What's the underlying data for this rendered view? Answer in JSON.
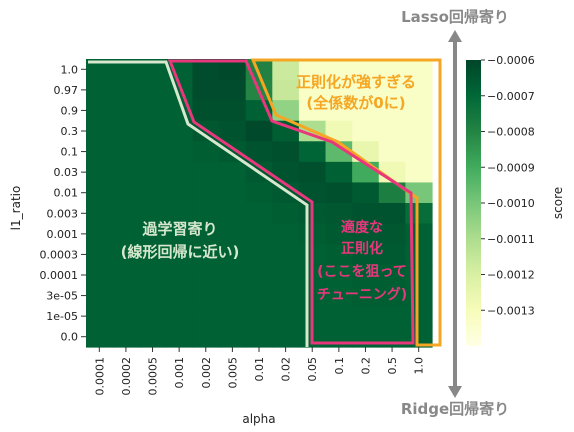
{
  "chart_data": {
    "type": "heatmap",
    "xlabel": "alpha",
    "ylabel": "l1_ratio",
    "x_categories": [
      "0.0001",
      "0.0002",
      "0.0005",
      "0.001",
      "0.002",
      "0.005",
      "0.01",
      "0.02",
      "0.05",
      "0.1",
      "0.2",
      "0.5",
      "1.0"
    ],
    "y_categories": [
      "1.0",
      "0.97",
      "0.9",
      "0.3",
      "0.1",
      "0.03",
      "0.01",
      "0.003",
      "0.001",
      "0.0003",
      "0.0001",
      "3e-05",
      "1e-05",
      "0.0"
    ],
    "values": [
      [
        -0.00068,
        -0.00068,
        -0.00068,
        -0.00068,
        -0.00062,
        -0.00061,
        -0.00079,
        -0.00117,
        -0.00133,
        -0.00133,
        -0.00133,
        -0.00133,
        -0.00133
      ],
      [
        -0.00068,
        -0.00068,
        -0.00068,
        -0.00068,
        -0.00062,
        -0.00062,
        -0.0008,
        -0.00116,
        -0.00133,
        -0.00133,
        -0.00133,
        -0.00133,
        -0.00133
      ],
      [
        -0.00068,
        -0.00068,
        -0.00068,
        -0.00068,
        -0.00063,
        -0.00063,
        -0.00068,
        -0.00105,
        -0.00133,
        -0.00133,
        -0.00133,
        -0.00133,
        -0.00133
      ],
      [
        -0.00068,
        -0.00068,
        -0.00068,
        -0.00068,
        -0.00065,
        -0.00064,
        -0.00061,
        -0.00067,
        -0.0011,
        -0.00128,
        -0.00133,
        -0.00133,
        -0.00133
      ],
      [
        -0.00068,
        -0.00068,
        -0.00068,
        -0.00068,
        -0.00067,
        -0.00066,
        -0.00064,
        -0.00063,
        -0.00069,
        -0.00095,
        -0.00125,
        -0.00133,
        -0.00133
      ],
      [
        -0.00068,
        -0.00068,
        -0.00068,
        -0.00068,
        -0.00068,
        -0.00068,
        -0.00066,
        -0.00064,
        -0.00063,
        -0.00068,
        -0.0009,
        -0.00128,
        -0.00133
      ],
      [
        -0.00068,
        -0.00068,
        -0.00068,
        -0.00068,
        -0.00068,
        -0.00068,
        -0.00067,
        -0.00066,
        -0.00064,
        -0.00063,
        -0.00066,
        -0.00078,
        -0.001
      ],
      [
        -0.00068,
        -0.00068,
        -0.00068,
        -0.00068,
        -0.00068,
        -0.00068,
        -0.00068,
        -0.00067,
        -0.00066,
        -0.00065,
        -0.00064,
        -0.00064,
        -0.00072
      ],
      [
        -0.00068,
        -0.00068,
        -0.00068,
        -0.00068,
        -0.00068,
        -0.00068,
        -0.00068,
        -0.00068,
        -0.00067,
        -0.00066,
        -0.00065,
        -0.00065,
        -0.00068
      ],
      [
        -0.00068,
        -0.00068,
        -0.00068,
        -0.00068,
        -0.00068,
        -0.00068,
        -0.00068,
        -0.00068,
        -0.00068,
        -0.00067,
        -0.00066,
        -0.00066,
        -0.00068
      ],
      [
        -0.00068,
        -0.00068,
        -0.00068,
        -0.00068,
        -0.00068,
        -0.00068,
        -0.00068,
        -0.00068,
        -0.00068,
        -0.00068,
        -0.00067,
        -0.00067,
        -0.00068
      ],
      [
        -0.00068,
        -0.00068,
        -0.00068,
        -0.00068,
        -0.00068,
        -0.00068,
        -0.00068,
        -0.00068,
        -0.00068,
        -0.00068,
        -0.00067,
        -0.00067,
        -0.00068
      ],
      [
        -0.00068,
        -0.00068,
        -0.00068,
        -0.00068,
        -0.00068,
        -0.00068,
        -0.00068,
        -0.00068,
        -0.00068,
        -0.00068,
        -0.00068,
        -0.00068,
        -0.00068
      ],
      [
        -0.00068,
        -0.00068,
        -0.00068,
        -0.00068,
        -0.00068,
        -0.00068,
        -0.00068,
        -0.00068,
        -0.00068,
        -0.00068,
        -0.00068,
        -0.00068,
        -0.00068
      ]
    ],
    "colorbar": {
      "label": "score",
      "range": [
        -0.0014,
        -0.0006
      ],
      "ticks": [
        "−0.0006",
        "−0.0007",
        "−0.0008",
        "−0.0009",
        "−0.0010",
        "−0.0011",
        "−0.0012",
        "−0.0013"
      ],
      "tick_values": [
        -0.0006,
        -0.0007,
        -0.0008,
        -0.0009,
        -0.001,
        -0.0011,
        -0.0012,
        -0.0013
      ],
      "colormap": "YlGn",
      "colors": [
        "#ffffe5",
        "#f7fcb9",
        "#d9f0a3",
        "#addd8e",
        "#78c679",
        "#41ab5d",
        "#238443",
        "#006837",
        "#004529"
      ]
    },
    "annotations": {
      "lasso": "Lasso回帰寄り",
      "ridge": "Ridge回帰寄り",
      "strong_title": "正則化が強すぎる",
      "strong_sub": "(全係数が0に)",
      "over_title": "過学習寄り",
      "over_sub": "(線形回帰に近い)",
      "good_1": "適度な",
      "good_2": "正則化",
      "good_3": "(ここを狙って",
      "good_4": "チューニング)"
    },
    "annotation_colors": {
      "strong": "#f5a623",
      "overfit": "#d7e8cf",
      "good": "#e8377d",
      "arrow": "#888888"
    }
  }
}
